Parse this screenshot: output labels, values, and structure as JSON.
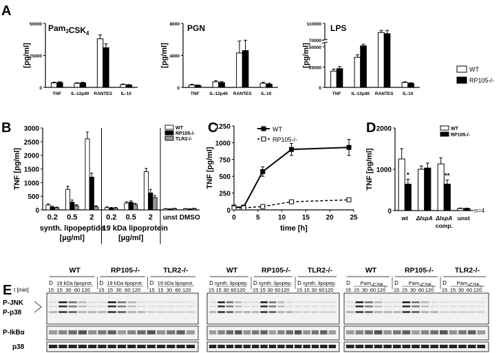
{
  "panel_labels": [
    "A",
    "B",
    "C",
    "D",
    "E"
  ],
  "legend_A": {
    "wt": "WT",
    "ko": "RP105-/-"
  },
  "chart_data": [
    {
      "panel": "A1",
      "type": "bar",
      "title": "Pam3CSK4",
      "title_base": "Pam",
      "title_sub1": "3",
      "title_mid": "CSK",
      "title_sub2": "4",
      "ylabel": "[pg/ml]",
      "categories": [
        "TNF",
        "IL-12p40",
        "RANTES",
        "IL-10"
      ],
      "ylim": [
        0,
        50000
      ],
      "yticks": [
        "0",
        "25000",
        "50000"
      ],
      "ytick_values": [
        0,
        25000,
        50000
      ],
      "series": [
        {
          "name": "WT",
          "values": [
            3500,
            3200,
            38000,
            2200
          ],
          "errors": [
            600,
            500,
            3000,
            400
          ]
        },
        {
          "name": "RP105-/-",
          "values": [
            3800,
            3500,
            31000,
            1800
          ],
          "errors": [
            600,
            500,
            3000,
            400
          ]
        }
      ]
    },
    {
      "panel": "A2",
      "type": "bar",
      "title": "PGN",
      "ylabel": "[pg/ml]",
      "categories": [
        "TNF",
        "IL-12p40",
        "RANTES",
        "IL-10"
      ],
      "ylim": [
        0,
        8000
      ],
      "yticks": [
        "0",
        "4000",
        "8000"
      ],
      "ytick_values": [
        0,
        4000,
        8000
      ],
      "series": [
        {
          "name": "WT",
          "values": [
            300,
            700,
            4300,
            500
          ],
          "errors": [
            80,
            150,
            1500,
            150
          ]
        },
        {
          "name": "RP105-/-",
          "values": [
            250,
            600,
            4600,
            400
          ],
          "errors": [
            60,
            120,
            1300,
            120
          ]
        }
      ]
    },
    {
      "panel": "A3",
      "type": "bar",
      "title": "LPS",
      "ylabel": "[pg/ml]",
      "categories": [
        "TNF",
        "IL-12p40",
        "RANTES",
        "IL-10"
      ],
      "y_axis_break": [
        55000,
        70000
      ],
      "yticks": [
        "0",
        "25000",
        "50000",
        "70000",
        "110000"
      ],
      "ytick_values": [
        0,
        25000,
        50000,
        70000,
        110000
      ],
      "series": [
        {
          "name": "WT",
          "values": [
            20000,
            37000,
            88000,
            6000
          ],
          "errors": [
            2500,
            3000,
            5000,
            800
          ]
        },
        {
          "name": "RP105-/-",
          "values": [
            23000,
            51000,
            85000,
            5000
          ],
          "errors": [
            2500,
            2000,
            8000,
            800
          ]
        }
      ]
    },
    {
      "panel": "B",
      "type": "bar",
      "ylabel": "TNF [pg/ml]",
      "ylim": [
        0,
        3000
      ],
      "yticks": [
        "0",
        "500",
        "1000",
        "1500",
        "2000",
        "2500",
        "3000"
      ],
      "ytick_values": [
        0,
        500,
        1000,
        1500,
        2000,
        2500,
        3000
      ],
      "categories": [
        "0.2",
        "0.5",
        "2",
        "0.2",
        "0.5",
        "2",
        "unst",
        "DMSO"
      ],
      "group_labels": [
        "synth. lipopeptide",
        "19 kDa lipoprotein"
      ],
      "group_label_parts": [
        "synth. lipope",
        "ptide",
        "19 kDa lipoprotein"
      ],
      "unit_label": "[µg/ml]",
      "series": [
        {
          "name": "WT",
          "values": [
            180,
            750,
            2600,
            80,
            250,
            1400,
            40,
            40
          ],
          "errors": [
            40,
            120,
            250,
            30,
            50,
            120,
            10,
            10
          ]
        },
        {
          "name": "RP105-/-",
          "values": [
            100,
            280,
            1200,
            70,
            280,
            620,
            30,
            30
          ],
          "errors": [
            30,
            80,
            150,
            20,
            50,
            130,
            10,
            10
          ]
        },
        {
          "name": "TLR2-/-",
          "values": [
            80,
            150,
            120,
            70,
            200,
            450,
            50,
            50
          ],
          "errors": [
            20,
            40,
            30,
            20,
            40,
            80,
            10,
            10
          ]
        }
      ]
    },
    {
      "panel": "C",
      "type": "line",
      "ylabel": "TNF [pg/ml]",
      "xlabel": "time [h]",
      "xlim": [
        0,
        25
      ],
      "ylim": [
        0,
        1250
      ],
      "xticks": [
        "0",
        "5",
        "10",
        "15",
        "20",
        "25"
      ],
      "xtick_values": [
        0,
        5,
        10,
        15,
        20,
        25
      ],
      "yticks": [
        "0",
        "250",
        "500",
        "750",
        "1000",
        "1250"
      ],
      "ytick_values": [
        0,
        250,
        500,
        750,
        1000,
        1250
      ],
      "series": [
        {
          "name": "WT",
          "x": [
            0,
            2,
            6,
            12,
            24
          ],
          "y": [
            40,
            40,
            570,
            900,
            930
          ],
          "errors": [
            10,
            15,
            70,
            90,
            120
          ]
        },
        {
          "name": "RP105-/-",
          "x": [
            0,
            2,
            6,
            12,
            24
          ],
          "y": [
            30,
            30,
            50,
            120,
            150
          ],
          "errors": [
            5,
            5,
            10,
            15,
            20
          ]
        }
      ]
    },
    {
      "panel": "D",
      "type": "bar",
      "ylabel": "TNF [pg/ml]",
      "ylim": [
        0,
        2000
      ],
      "yticks": [
        "0",
        "1000",
        "2000"
      ],
      "ytick_values": [
        0,
        1000,
        2000
      ],
      "categories": [
        "wt",
        "ΔlspA",
        "ΔlspA comp.",
        "unst"
      ],
      "category_lines": [
        [
          "wt"
        ],
        [
          "ΔlspA"
        ],
        [
          "ΔlspA",
          "comp."
        ],
        [
          "unst"
        ]
      ],
      "annotations": [
        "*",
        "",
        "**",
        ""
      ],
      "n_label": "n=4",
      "series": [
        {
          "name": "WT",
          "values": [
            1250,
            1000,
            1130,
            50
          ],
          "errors": [
            250,
            80,
            150,
            10
          ]
        },
        {
          "name": "RP105-/-",
          "values": [
            640,
            1030,
            640,
            50
          ],
          "errors": [
            120,
            120,
            100,
            10
          ]
        }
      ]
    }
  ],
  "panel_E": {
    "blots": [
      {
        "groups": [
          "WT",
          "RP105-/-",
          "TLR2-/-"
        ],
        "stimulus": "19 kDa lipoprot."
      },
      {
        "groups": [
          "WT",
          "RP105-/-",
          "TLR2-/-"
        ],
        "stimulus": "synth. lipopep."
      },
      {
        "groups": [
          "WT",
          "RP105-/-",
          "TLR2-/-"
        ],
        "stimulus": "Pam3CSK4",
        "stim_base": "Pam",
        "stim_sub1": "3",
        "stim_mid": "CSK",
        "stim_sub2": "4"
      }
    ],
    "lane_d_label": "D",
    "time_label": "t [min]",
    "times": [
      "15",
      "15",
      "30",
      "60",
      "120"
    ],
    "rows": [
      "P-JNK",
      "P-p38",
      "P-IkBα",
      "p38"
    ]
  }
}
